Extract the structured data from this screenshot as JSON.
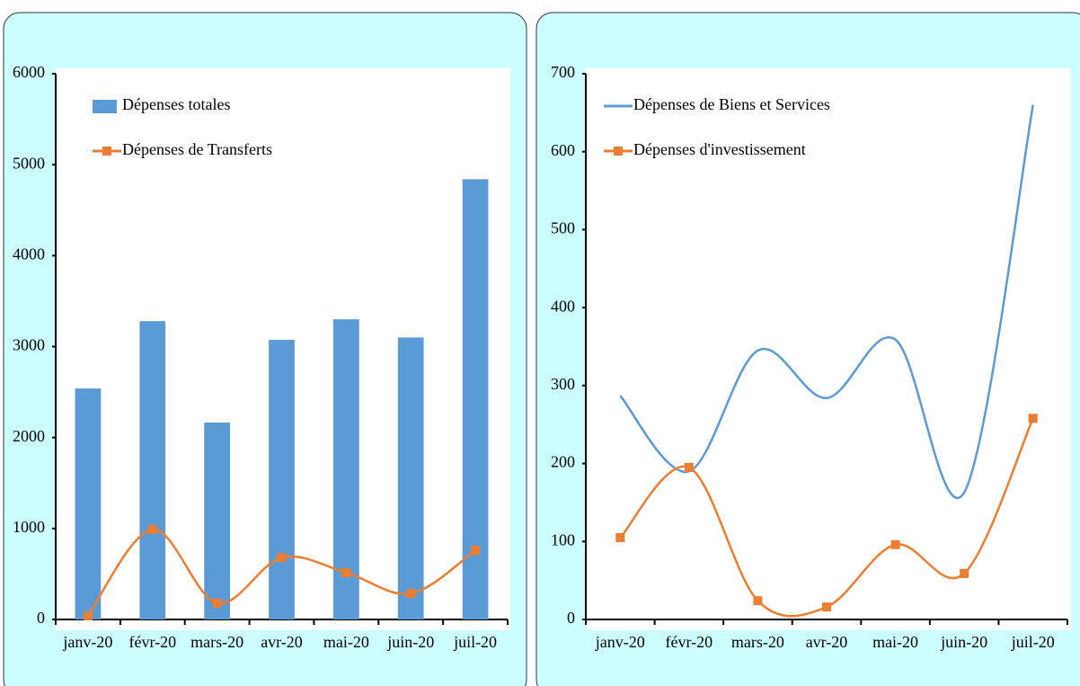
{
  "chart_data": [
    {
      "type": "bar",
      "smooth": true,
      "categories": [
        "janv-20",
        "févr-20",
        "mars-20",
        "avr-20",
        "mai-20",
        "juin-20",
        "juil-20"
      ],
      "ylim": [
        0,
        6000
      ],
      "yticks": [
        0,
        1000,
        2000,
        3000,
        4000,
        5000,
        6000
      ],
      "series": [
        {
          "name": "Dépenses totales",
          "type": "bar",
          "color": "#5b9bd5",
          "values": [
            2540,
            3280,
            2165,
            3075,
            3300,
            3100,
            4840
          ]
        },
        {
          "name": "Dépenses de Transferts",
          "type": "line",
          "marker": "square",
          "color": "#ed7d31",
          "values": [
            40,
            990,
            180,
            680,
            515,
            285,
            760
          ]
        }
      ]
    },
    {
      "type": "line",
      "smooth": true,
      "categories": [
        "janv-20",
        "févr-20",
        "mars-20",
        "avr-20",
        "mai-20",
        "juin-20",
        "juil-20"
      ],
      "ylim": [
        0,
        700
      ],
      "yticks": [
        0,
        100,
        200,
        300,
        400,
        500,
        600,
        700
      ],
      "series": [
        {
          "name": "Dépenses de Biens et Services",
          "type": "line",
          "color": "#5b9bd5",
          "values": [
            287,
            190,
            345,
            284,
            359,
            163,
            660
          ]
        },
        {
          "name": "Dépenses d'investissement",
          "type": "line",
          "marker": "square",
          "color": "#ed7d31",
          "values": [
            105,
            195,
            24,
            16,
            96,
            59,
            258
          ]
        }
      ]
    }
  ]
}
